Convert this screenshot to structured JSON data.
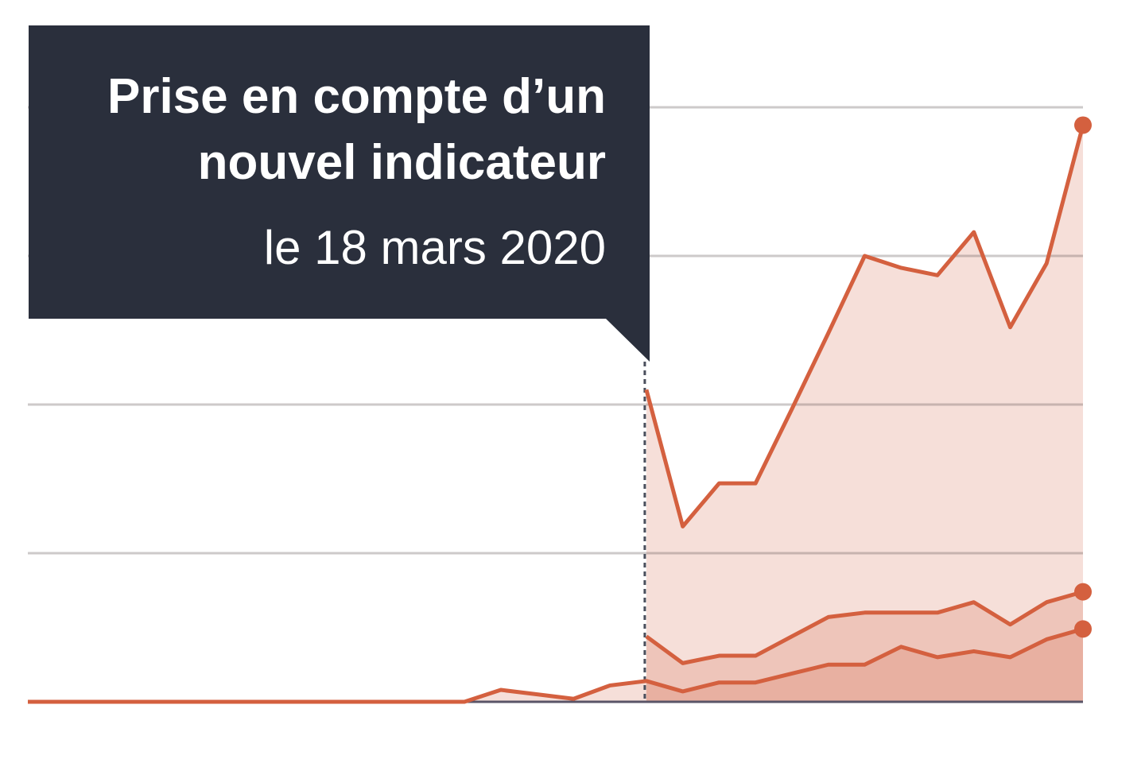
{
  "chart_data": {
    "type": "area",
    "annotation": {
      "title": [
        "Prise en compte d’un",
        "nouvel indicateur"
      ],
      "text": "le 18 mars 2020"
    },
    "categories": [
      null,
      null,
      null,
      null,
      null,
      null,
      null,
      null,
      null,
      null,
      null,
      null,
      null,
      null,
      null,
      null,
      null,
      null,
      null,
      null,
      null,
      null,
      null,
      null,
      null,
      null,
      null,
      null,
      null,
      null
    ],
    "series": [
      {
        "color": "#d4603f",
        "values": [
          0,
          0,
          0,
          0,
          0,
          0,
          0,
          0,
          0,
          0,
          0,
          0,
          0,
          0.08,
          0.05,
          0.02,
          0.11,
          0.14,
          0.07,
          0.13,
          0.13,
          0.19,
          0.25,
          0.25,
          0.37,
          0.3,
          0.34,
          0.3,
          0.42,
          0.49
        ]
      },
      {
        "color": "#d4603f",
        "values": [
          null,
          null,
          null,
          null,
          null,
          null,
          null,
          null,
          null,
          null,
          null,
          null,
          null,
          null,
          null,
          null,
          null,
          0.44,
          0.26,
          0.31,
          0.31,
          0.44,
          0.57,
          0.6,
          0.6,
          0.6,
          0.67,
          0.52,
          0.67,
          0.74
        ]
      },
      {
        "color": "#d4603f",
        "values": [
          null,
          null,
          null,
          null,
          null,
          null,
          null,
          null,
          null,
          null,
          null,
          null,
          null,
          null,
          null,
          null,
          null,
          2.1,
          1.18,
          1.47,
          1.47,
          1.97,
          2.48,
          3.0,
          2.92,
          2.87,
          3.16,
          2.52,
          2.95,
          3.88
        ]
      }
    ],
    "ylim": [
      0,
      4
    ],
    "yticks": [
      0,
      1,
      2,
      3,
      4
    ],
    "grid": true
  }
}
